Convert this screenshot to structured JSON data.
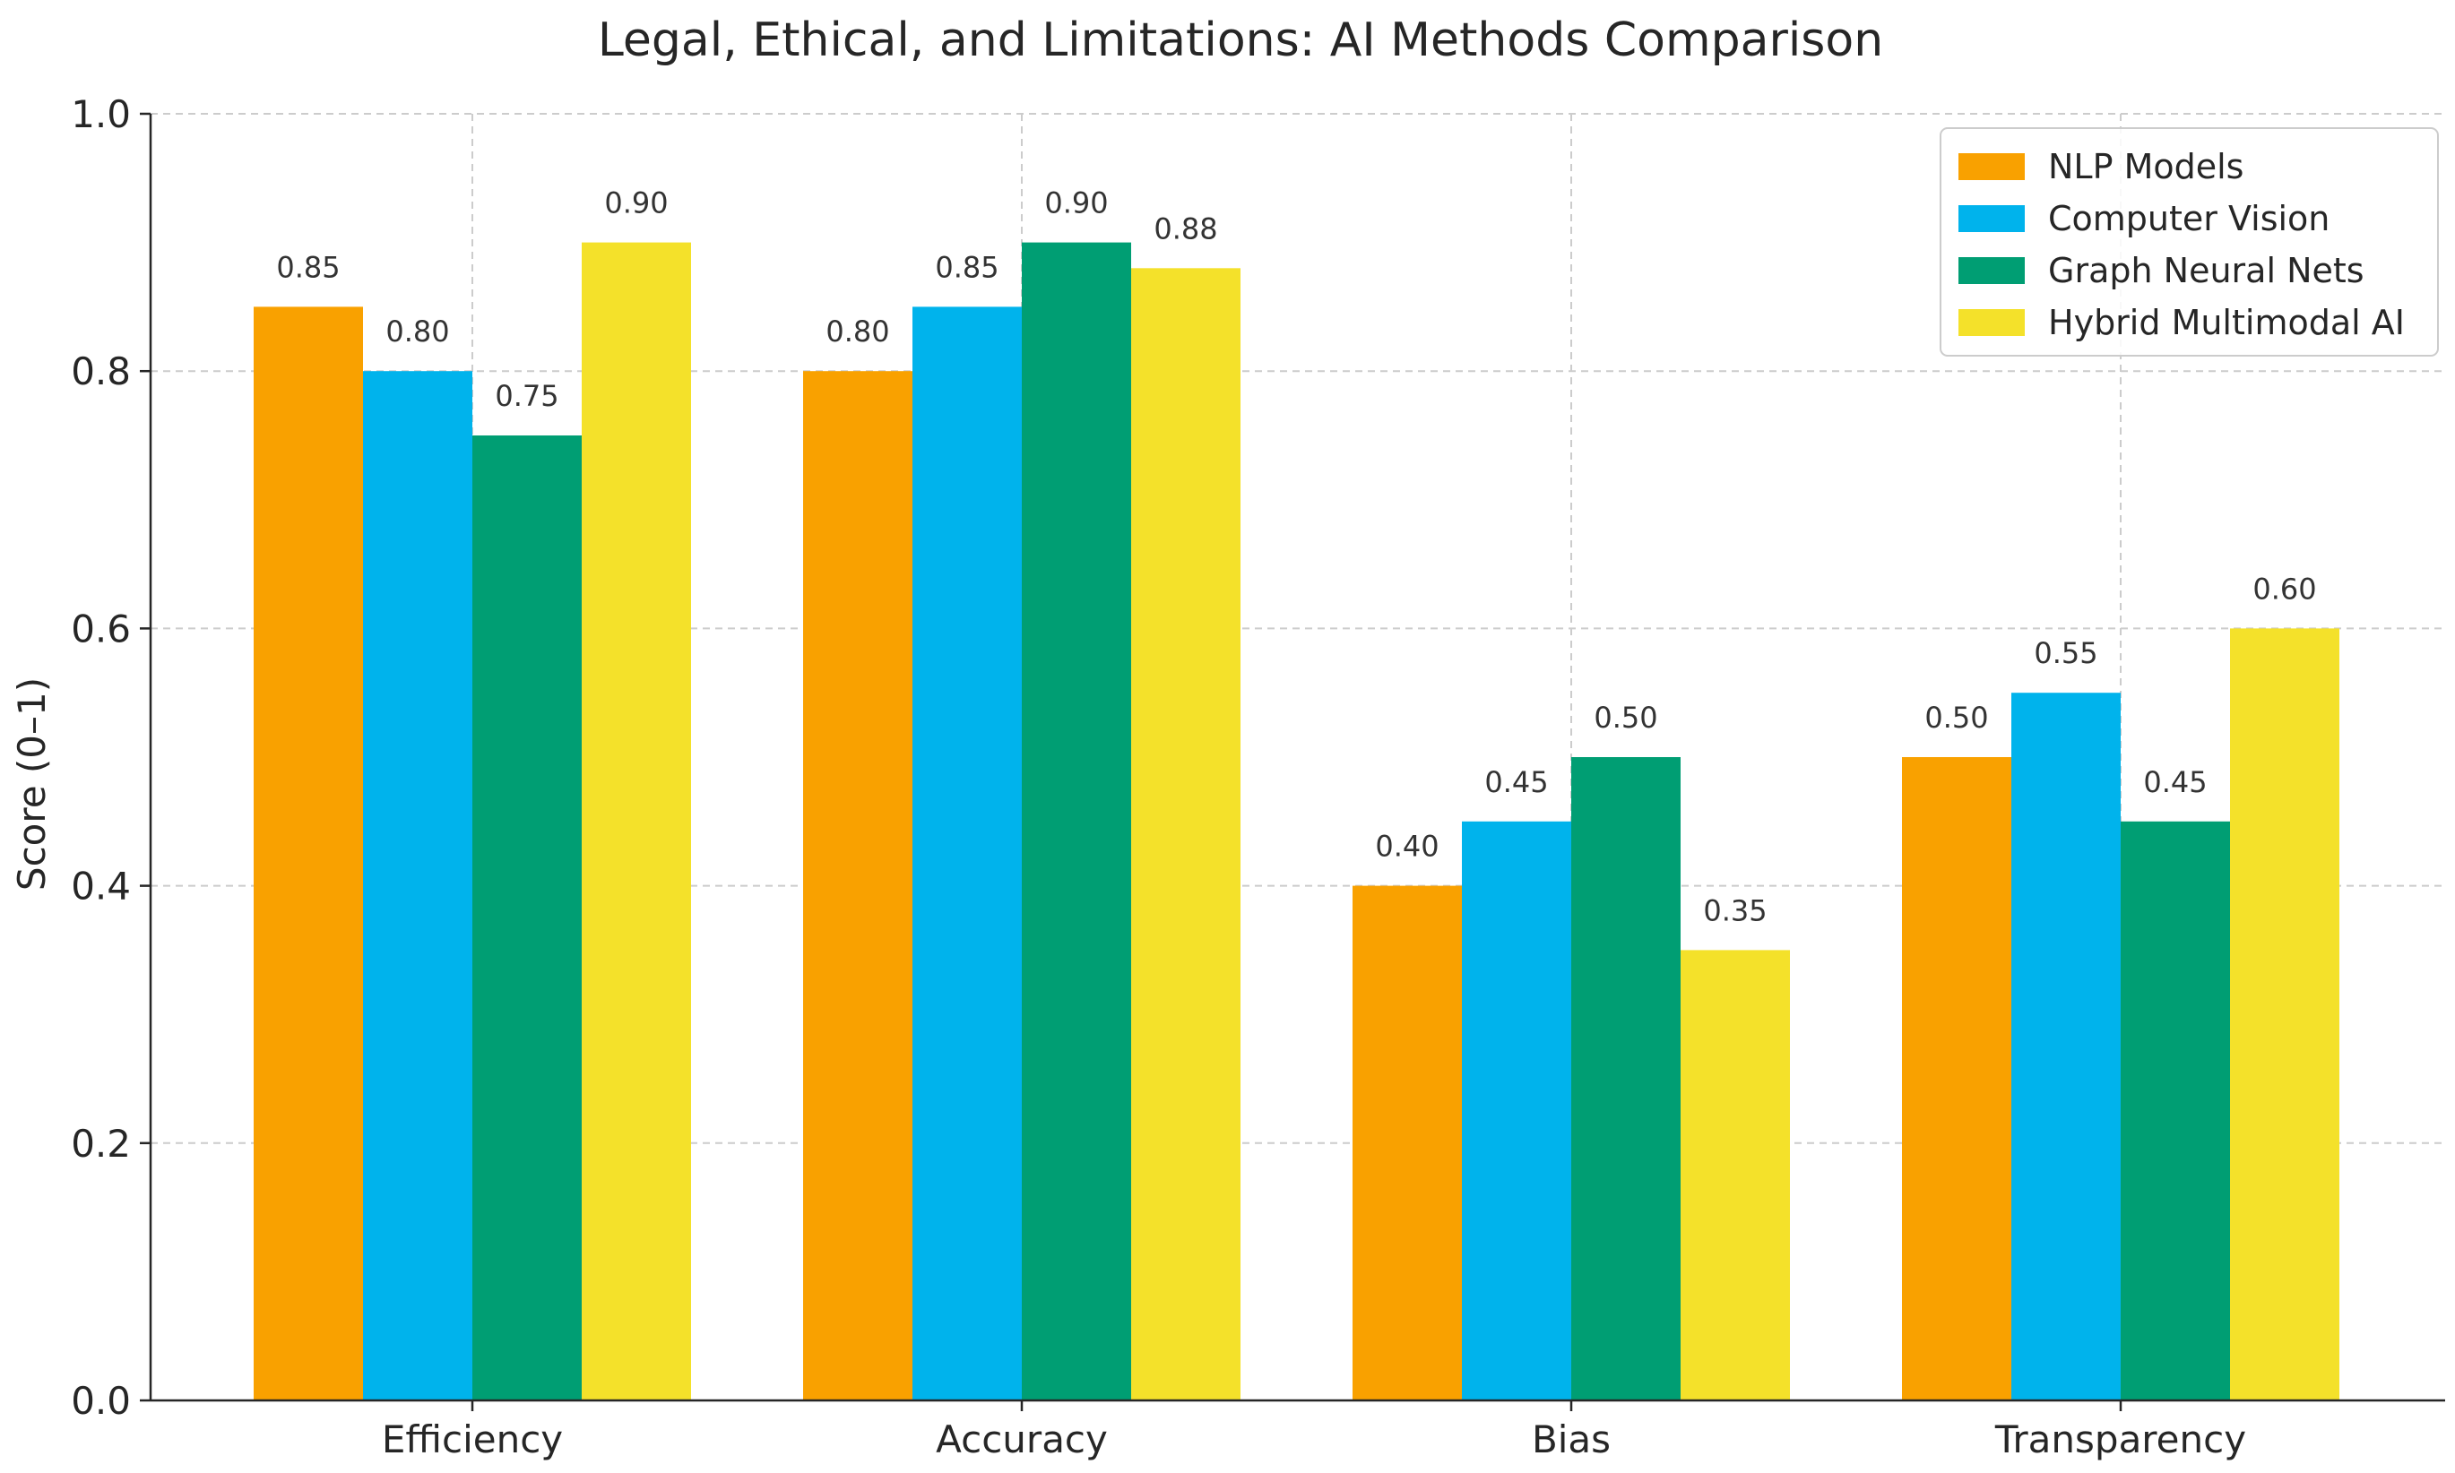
{
  "chart_data": {
    "type": "bar",
    "title": "Legal, Ethical, and Limitations: AI Methods Comparison",
    "xlabel": "",
    "ylabel": "Score (0–1)",
    "ylim": [
      0,
      1.0
    ],
    "yticks": [
      0.0,
      0.2,
      0.4,
      0.6,
      0.8,
      1.0
    ],
    "ytick_labels": [
      "0.0",
      "0.2",
      "0.4",
      "0.6",
      "0.8",
      "1.0"
    ],
    "grid": true,
    "legend_position": "top-right",
    "categories": [
      "Efficiency",
      "Accuracy",
      "Bias",
      "Transparency"
    ],
    "series": [
      {
        "name": "NLP Models",
        "color": "#F9A100",
        "values": [
          0.85,
          0.8,
          0.4,
          0.5
        ],
        "labels": [
          "0.85",
          "0.80",
          "0.40",
          "0.50"
        ]
      },
      {
        "name": "Computer Vision",
        "color": "#00B3EC",
        "values": [
          0.8,
          0.85,
          0.45,
          0.55
        ],
        "labels": [
          "0.80",
          "0.85",
          "0.45",
          "0.55"
        ]
      },
      {
        "name": "Graph Neural Nets",
        "color": "#009E73",
        "values": [
          0.75,
          0.9,
          0.5,
          0.45
        ],
        "labels": [
          "0.75",
          "0.90",
          "0.50",
          "0.45"
        ]
      },
      {
        "name": "Hybrid Multimodal AI",
        "color": "#F4E12A",
        "values": [
          0.9,
          0.88,
          0.35,
          0.6
        ],
        "labels": [
          "0.90",
          "0.88",
          "0.35",
          "0.60"
        ]
      }
    ]
  }
}
